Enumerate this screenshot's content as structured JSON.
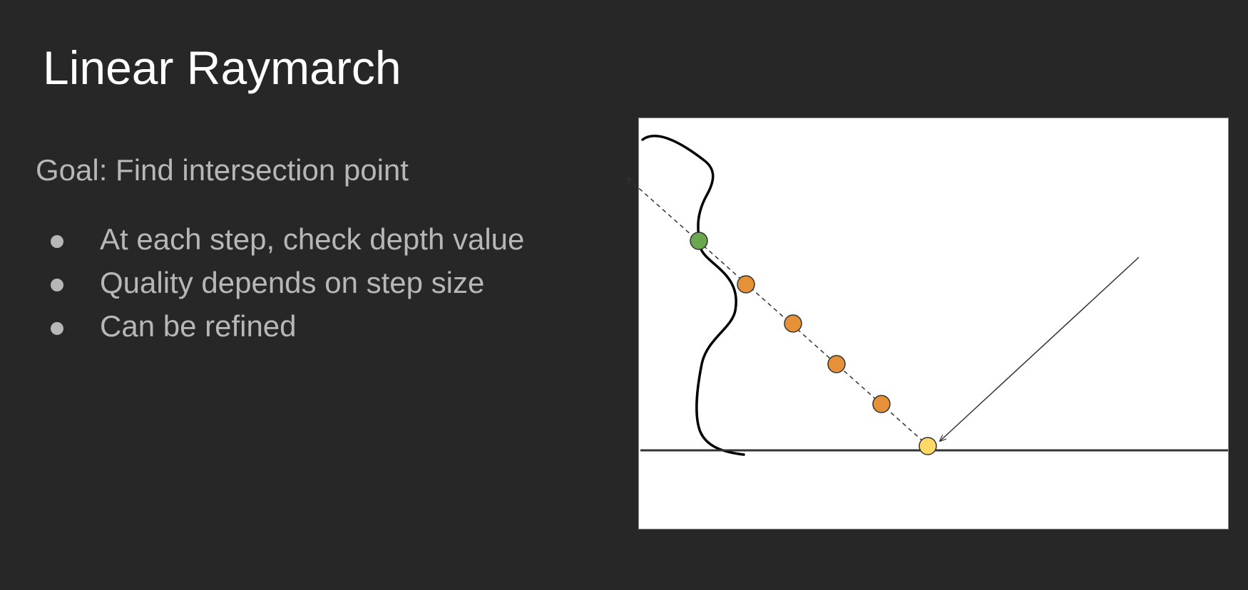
{
  "slide": {
    "title": "Linear Raymarch",
    "goal": "Goal: Find intersection point",
    "bullets": [
      "At each step, check depth value",
      "Quality depends on step size",
      "Can be refined"
    ]
  },
  "diagram": {
    "colors": {
      "background": "#ffffff",
      "surface_curve": "#000000",
      "ground_line": "#333333",
      "ray": "#333333",
      "intersection_point": "#6aa84f",
      "step_point": "#e69138",
      "start_point": "#ffd966"
    },
    "step_sample_count": 4
  }
}
